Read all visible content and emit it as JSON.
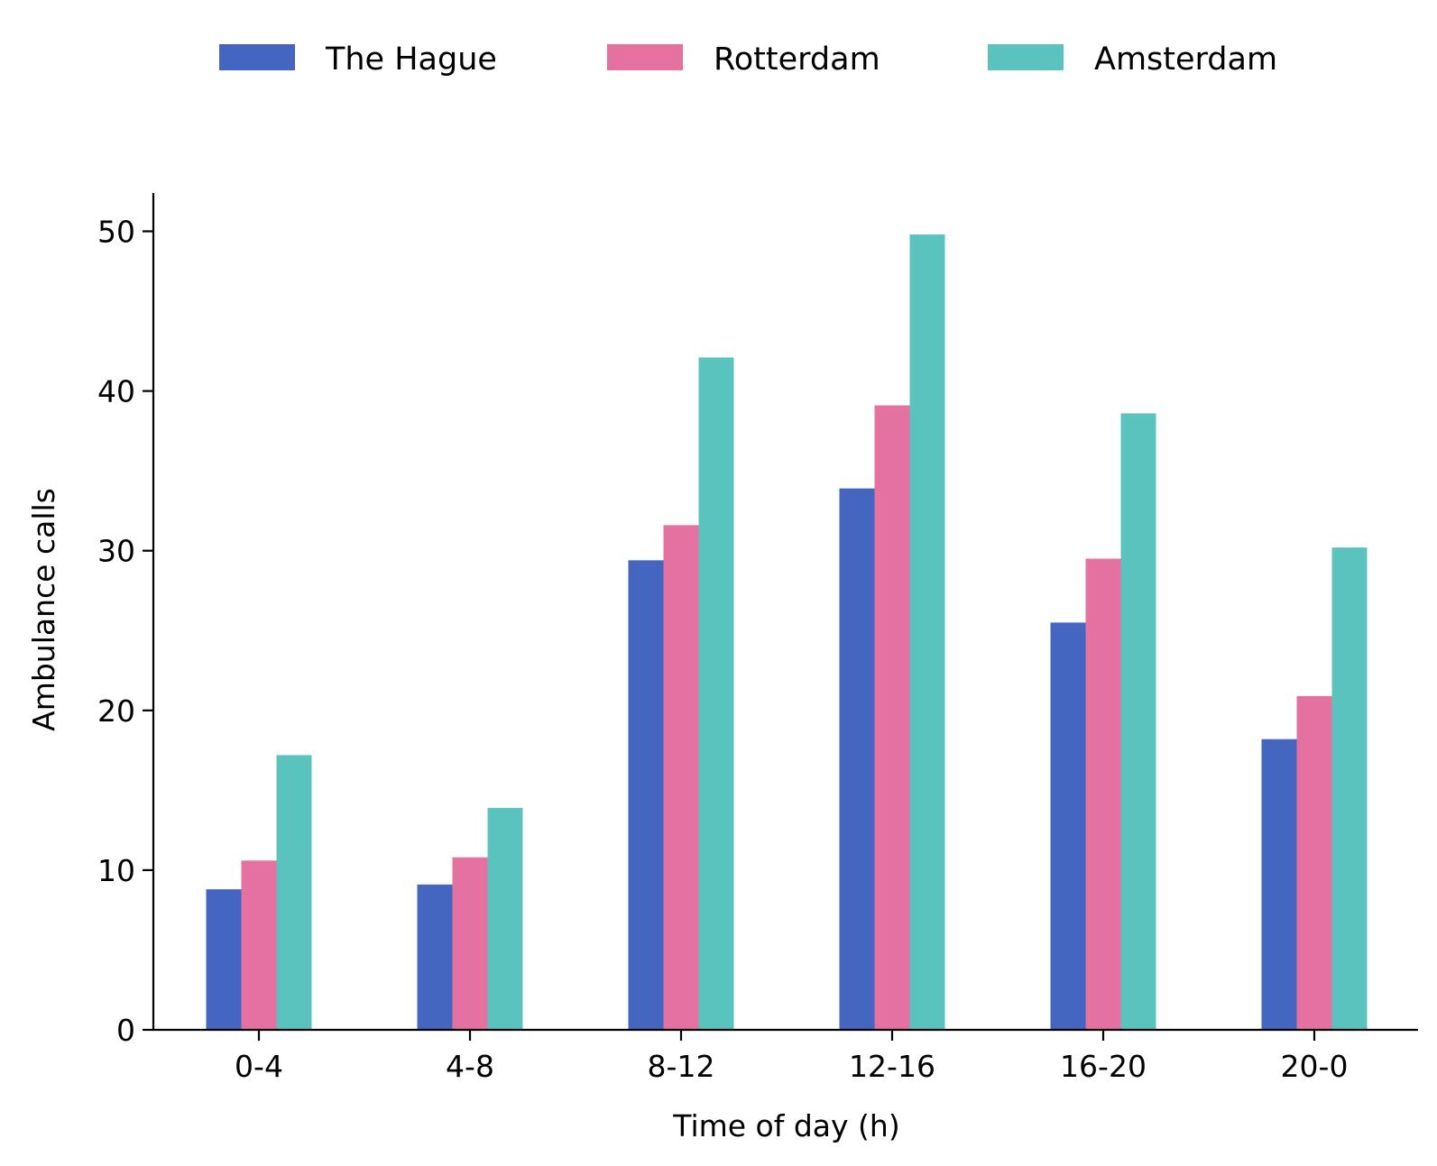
{
  "chart_data": {
    "type": "bar",
    "categories": [
      "0-4",
      "4-8",
      "8-12",
      "12-16",
      "16-20",
      "20-0"
    ],
    "series": [
      {
        "name": "The Hague",
        "color": "#4466c0",
        "values": [
          8.8,
          9.1,
          29.4,
          33.9,
          25.5,
          18.2
        ]
      },
      {
        "name": "Rotterdam",
        "color": "#e571a0",
        "values": [
          10.6,
          10.8,
          31.6,
          39.1,
          29.5,
          20.9
        ]
      },
      {
        "name": "Amsterdam",
        "color": "#5bc3bd",
        "values": [
          17.2,
          13.9,
          42.1,
          49.8,
          38.6,
          30.2
        ]
      }
    ],
    "xlabel": "Time of day (h)",
    "ylabel": "Ambulance calls",
    "ylim": [
      0,
      52.4
    ],
    "yticks": [
      0,
      10,
      20,
      30,
      40,
      50
    ],
    "legend_position": "top-center",
    "grid": false
  }
}
